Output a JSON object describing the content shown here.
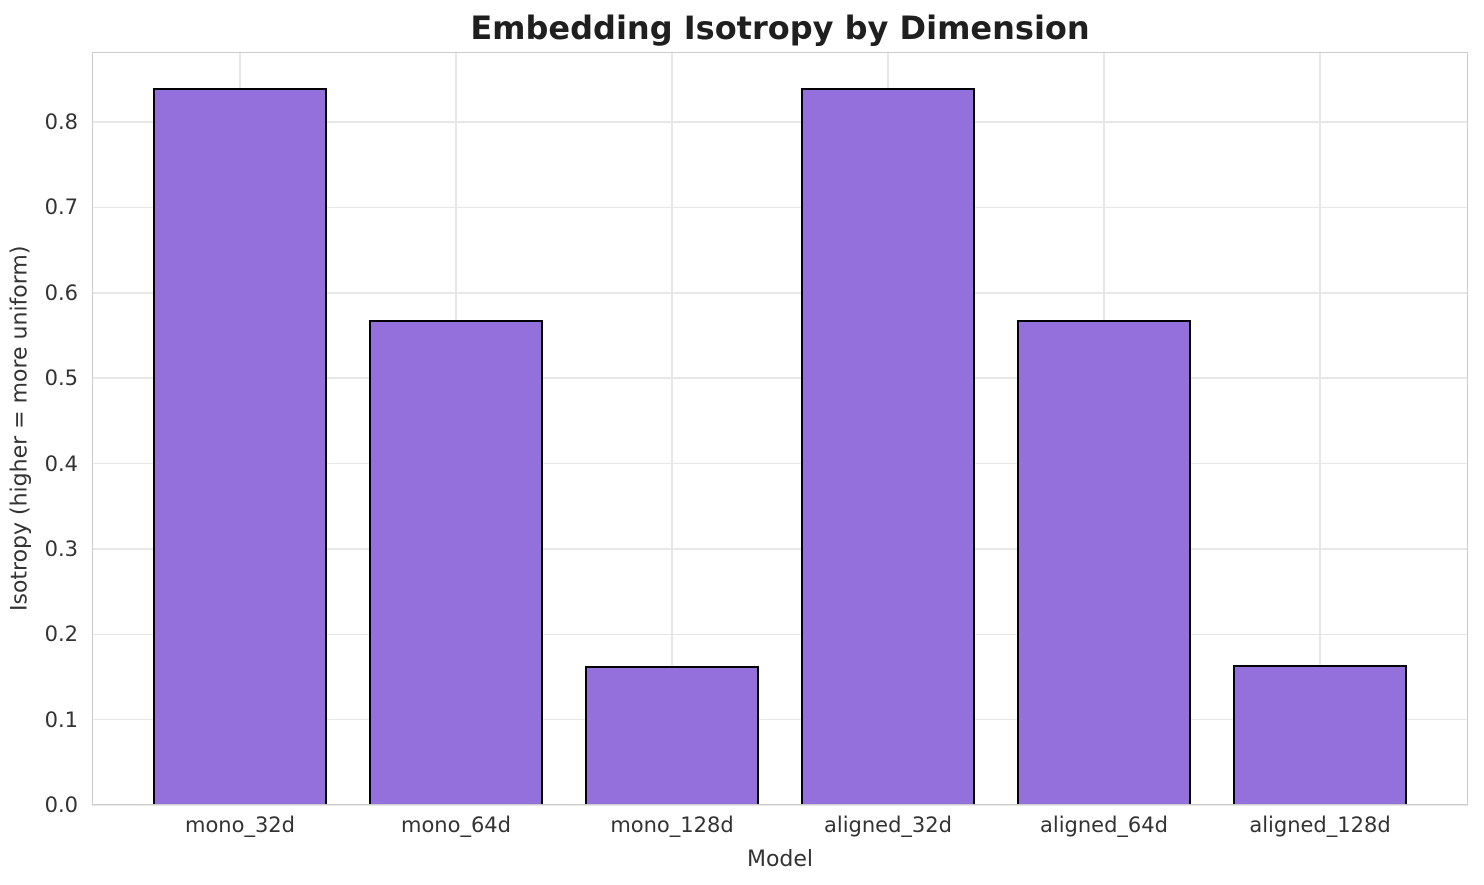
{
  "chart_data": {
    "type": "bar",
    "title": "Embedding Isotropy by Dimension",
    "xlabel": "Model",
    "ylabel": "Isotropy (higher = more uniform)",
    "categories": [
      "mono_32d",
      "mono_64d",
      "mono_128d",
      "aligned_32d",
      "aligned_64d",
      "aligned_128d"
    ],
    "values": [
      0.84,
      0.568,
      0.163,
      0.84,
      0.568,
      0.164
    ],
    "ylim": [
      0,
      0.882
    ],
    "yticks": [
      0,
      0.1,
      0.2,
      0.3,
      0.4,
      0.5,
      0.6,
      0.7,
      0.8
    ],
    "ytick_labels": [
      "0.0",
      "0.1",
      "0.2",
      "0.3",
      "0.4",
      "0.5",
      "0.6",
      "0.7",
      "0.8"
    ],
    "grid": true,
    "legend": null,
    "colors": {
      "bar_fill": "#9370DB",
      "bar_edge": "#000000",
      "grid": "#e7e7e7",
      "spine": "#cccccc",
      "tick_text": "#333333",
      "title_text": "#1f1f1f"
    }
  }
}
